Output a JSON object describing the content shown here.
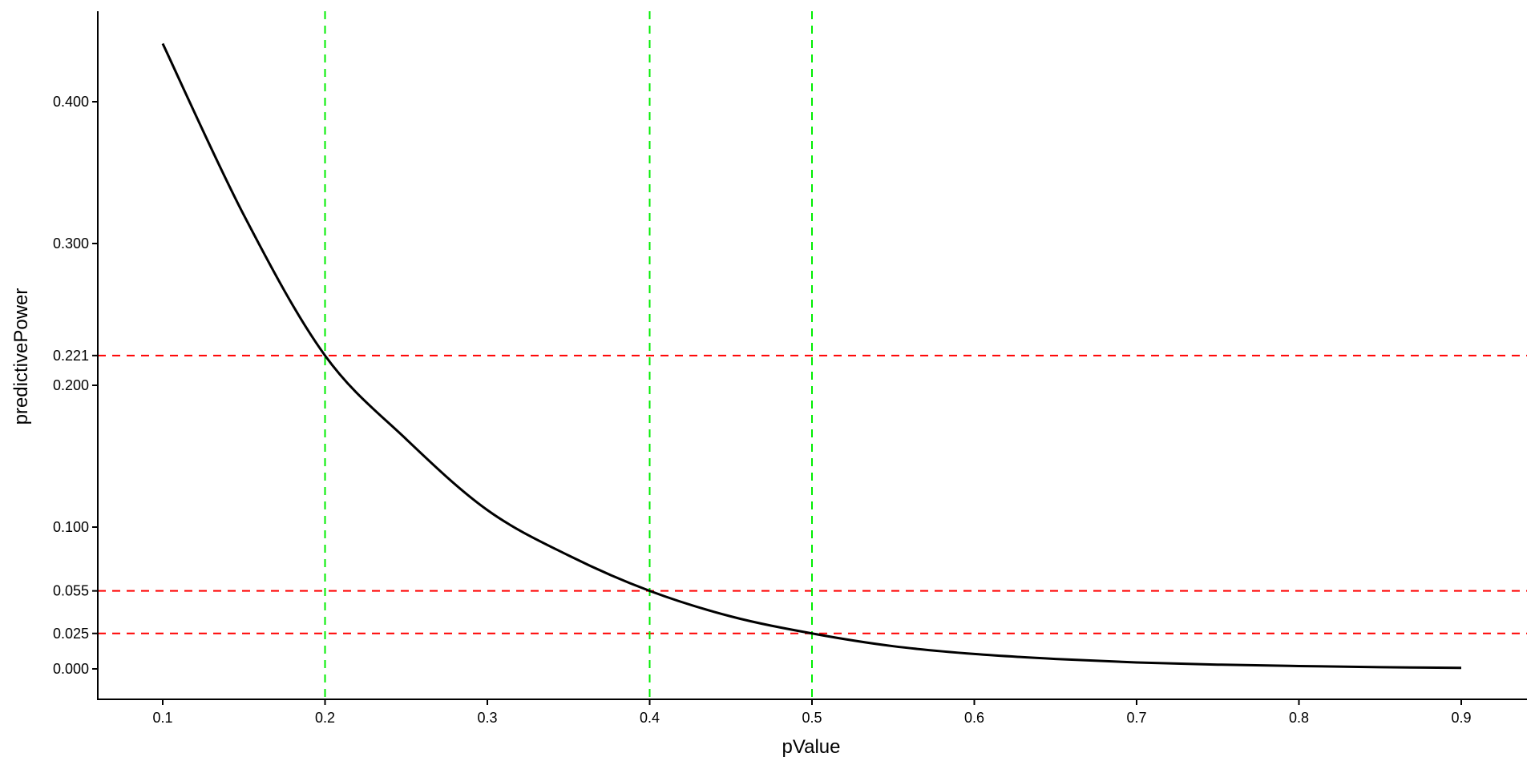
{
  "chart_data": {
    "type": "line",
    "title": "",
    "xlabel": "pValue",
    "ylabel": "predictivePower",
    "xlim": [
      0.06,
      0.94
    ],
    "ylim": [
      -0.023,
      0.465
    ],
    "x_ticks": [
      "0.1",
      "0.2",
      "0.3",
      "0.4",
      "0.5",
      "0.6",
      "0.7",
      "0.8",
      "0.9"
    ],
    "y_ticks": [
      "0.000",
      "0.025",
      "0.055",
      "0.100",
      "0.200",
      "0.221",
      "0.300",
      "0.400"
    ],
    "grid": false,
    "series": [
      {
        "color": "#000000",
        "x": [
          0.1,
          0.15,
          0.2,
          0.25,
          0.3,
          0.35,
          0.4,
          0.45,
          0.5,
          0.55,
          0.6,
          0.65,
          0.7,
          0.75,
          0.8,
          0.85,
          0.9
        ],
        "y": [
          0.441,
          0.32,
          0.221,
          0.162,
          0.112,
          0.08,
          0.055,
          0.037,
          0.025,
          0.016,
          0.0105,
          0.007,
          0.0045,
          0.003,
          0.002,
          0.0012,
          0.0007
        ]
      }
    ],
    "reference_lines": {
      "horizontal": {
        "values": [
          0.221,
          0.055,
          0.025
        ],
        "color": "#ff0000",
        "style": "dashed"
      },
      "vertical": {
        "values": [
          0.2,
          0.4,
          0.5
        ],
        "color": "#00ee00",
        "style": "dashed"
      }
    }
  }
}
